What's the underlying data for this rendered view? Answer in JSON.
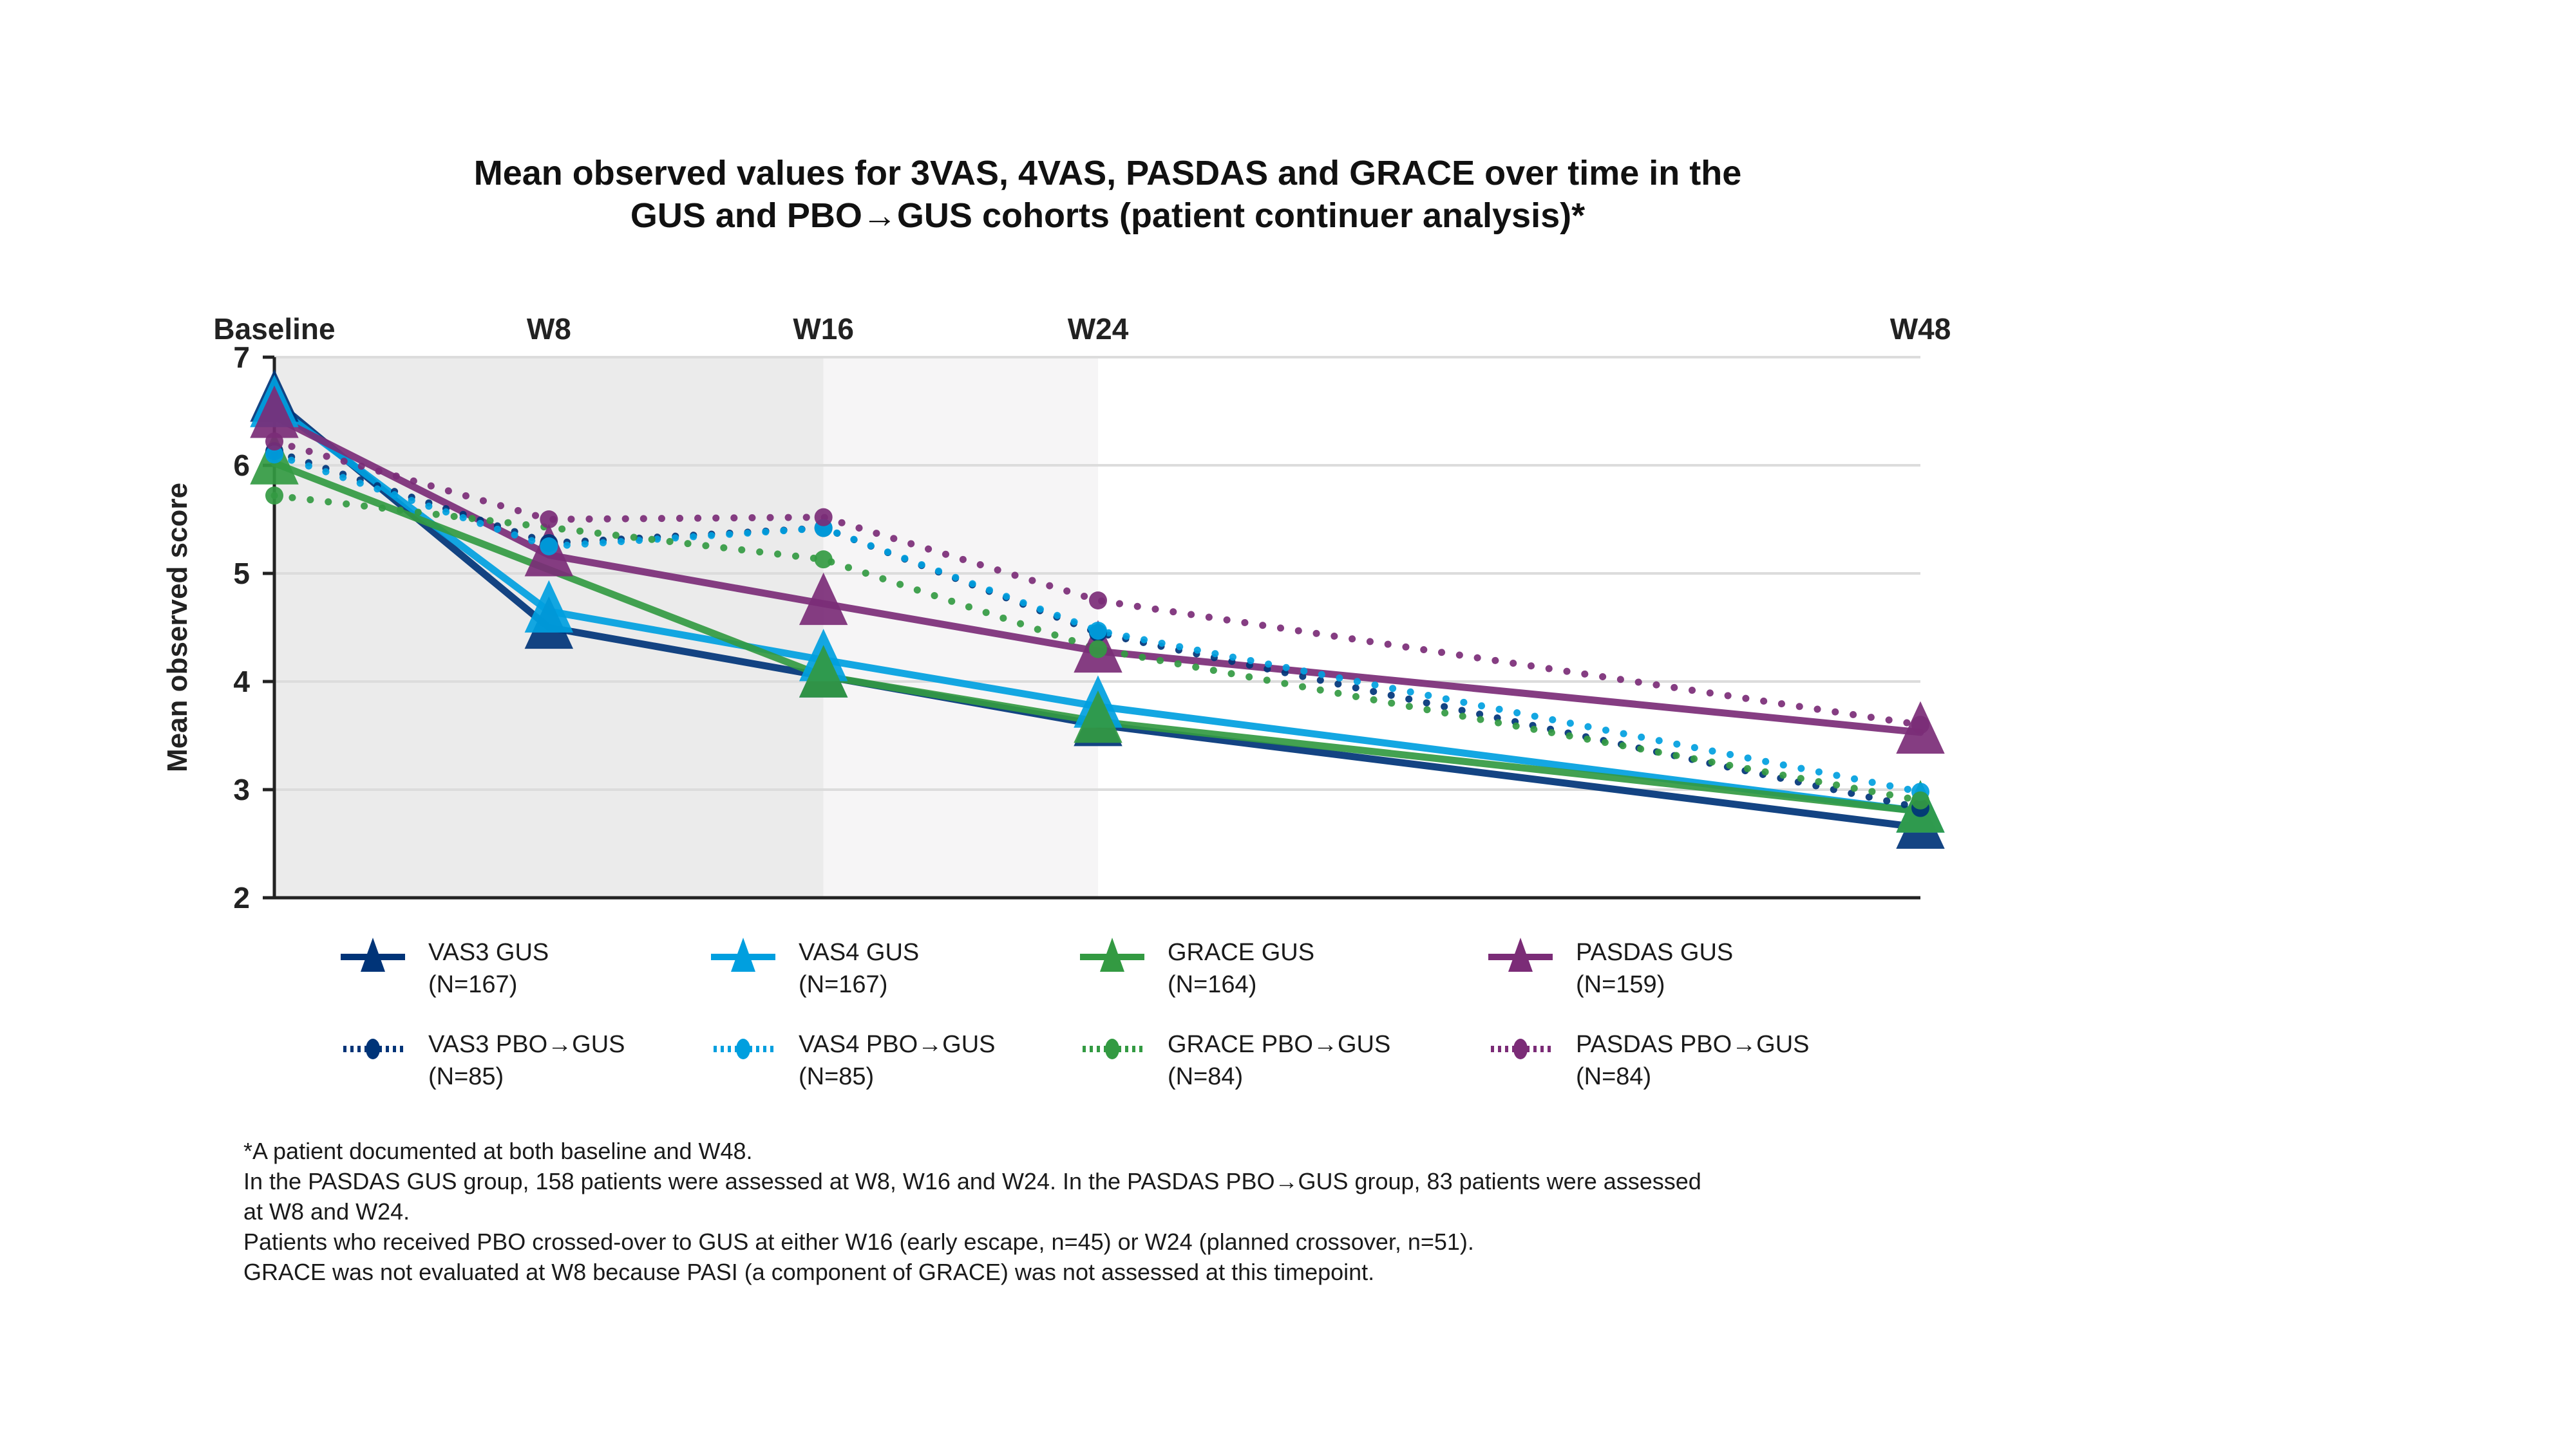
{
  "title": {
    "line1": "Mean observed values for 3VAS, 4VAS, PASDAS and GRACE over time in the",
    "line2": "GUS and PBO→GUS cohorts (patient continuer analysis)*"
  },
  "colors": {
    "vas3": "#003478",
    "vas4": "#009fdf",
    "grace": "#339a42",
    "pasdas": "#7b2c77",
    "shade_early": "#ebebeb",
    "shade_mid": "#f6f5f6",
    "grid": "#dcdcdc",
    "axis": "#222222"
  },
  "chart_data": {
    "type": "line",
    "title": "Mean observed values for 3VAS, 4VAS, PASDAS and GRACE over time in the GUS and PBO→GUS cohorts (patient continuer analysis)*",
    "xlabel": "",
    "ylabel": "Mean observed score",
    "x_categories": [
      "Baseline",
      "W8",
      "W16",
      "W24",
      "W48"
    ],
    "x_weeks": [
      0,
      8,
      16,
      24,
      48
    ],
    "ylim": [
      2,
      7
    ],
    "yticks": [
      2,
      3,
      4,
      5,
      6,
      7
    ],
    "grid": true,
    "shaded_regions": [
      {
        "from_week": 0,
        "to_week": 16,
        "shade": "darker"
      },
      {
        "from_week": 16,
        "to_week": 24,
        "shade": "lighter"
      }
    ],
    "legend_position": "bottom",
    "series": [
      {
        "name": "VAS3 GUS",
        "n_label": "(N=167)",
        "color_key": "vas3",
        "style": "solid",
        "marker": "triangle",
        "values": [
          6.6,
          4.5,
          4.05,
          3.6,
          2.65
        ]
      },
      {
        "name": "VAS4 GUS",
        "n_label": "(N=167)",
        "color_key": "vas4",
        "style": "solid",
        "marker": "triangle",
        "values": [
          6.55,
          4.65,
          4.2,
          3.77,
          2.8
        ]
      },
      {
        "name": "GRACE GUS",
        "n_label": "(N=164)",
        "color_key": "grace",
        "style": "solid",
        "marker": "triangle",
        "values": [
          6.02,
          null,
          4.05,
          3.63,
          2.8
        ]
      },
      {
        "name": "PASDAS GUS",
        "n_label": "(N=159)",
        "color_key": "pasdas",
        "style": "solid",
        "marker": "triangle",
        "values": [
          6.45,
          5.17,
          4.72,
          4.28,
          3.53
        ]
      },
      {
        "name": "VAS3 PBO→GUS",
        "n_label": "(N=85)",
        "color_key": "vas3",
        "style": "dotted",
        "marker": "circle",
        "values": [
          6.13,
          5.28,
          5.42,
          4.45,
          2.83
        ]
      },
      {
        "name": "VAS4 PBO→GUS",
        "n_label": "(N=85)",
        "color_key": "vas4",
        "style": "dotted",
        "marker": "circle",
        "values": [
          6.1,
          5.25,
          5.42,
          4.47,
          2.98
        ]
      },
      {
        "name": "GRACE PBO→GUS",
        "n_label": "(N=84)",
        "color_key": "grace",
        "style": "dotted",
        "marker": "circle",
        "values": [
          5.72,
          null,
          5.13,
          4.3,
          2.9
        ]
      },
      {
        "name": "PASDAS PBO→GUS",
        "n_label": "(N=84)",
        "color_key": "pasdas",
        "style": "dotted",
        "marker": "circle",
        "values": [
          6.22,
          5.5,
          5.52,
          4.75,
          3.6
        ]
      }
    ]
  },
  "footnotes": [
    "*A patient documented at both baseline and W48.",
    "In the PASDAS GUS group, 158 patients were assessed at W8, W16 and W24. In the PASDAS PBO→GUS group, 83 patients were assessed",
    "at W8 and W24.",
    "Patients who received PBO crossed-over to GUS at either W16 (early escape, n=45) or W24 (planned crossover, n=51).",
    "GRACE was not evaluated at W8 because PASI (a component of GRACE) was not assessed at this timepoint."
  ]
}
